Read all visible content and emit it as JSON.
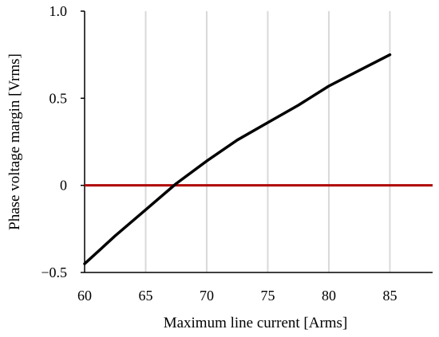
{
  "chart_data": {
    "type": "line",
    "xlabel": "Maximum  line  current [Arms]",
    "ylabel": "Phase voltage margin  [Vrms]",
    "xlim": [
      60,
      88.5
    ],
    "ylim": [
      -0.5,
      1.0
    ],
    "xticks": [
      60,
      65,
      70,
      75,
      80,
      85
    ],
    "yticks": [
      -0.5,
      0,
      0.5,
      1.0
    ],
    "xtick_labels": [
      "60",
      "65",
      "70",
      "75",
      "80",
      "85"
    ],
    "ytick_labels": [
      "−0.5",
      "0",
      "0.5",
      "1.0"
    ],
    "grid": "vertical",
    "series": [
      {
        "color": "#000000",
        "x": [
          60,
          62.5,
          65,
          67.5,
          70,
          72.5,
          75,
          77.5,
          80,
          82.5,
          85
        ],
        "y": [
          -0.45,
          -0.29,
          -0.14,
          0.01,
          0.14,
          0.26,
          0.36,
          0.46,
          0.57,
          0.66,
          0.75
        ]
      }
    ],
    "reference_line": {
      "y": 0,
      "color": "#b00000"
    }
  }
}
